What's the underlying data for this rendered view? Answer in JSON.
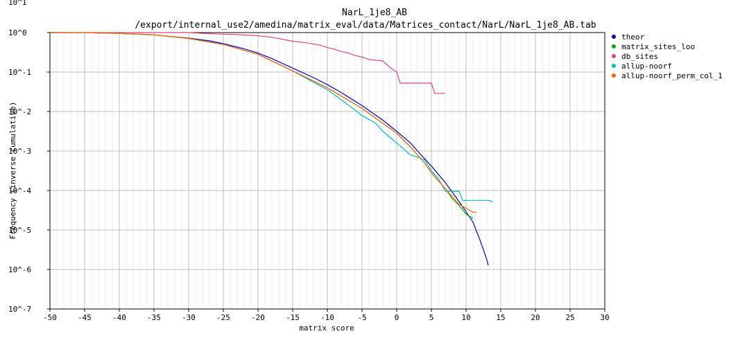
{
  "chart_data": {
    "type": "line",
    "title": "NarL_1je8_AB",
    "subtitle": "/export/internal_use2/amedina/matrix_eval/data/Matrices_contact/NarL/NarL_1je8_AB.tab",
    "xlabel": "matrix score",
    "ylabel": "Frequency (inverse cumulative)",
    "xlim": [
      -50,
      30
    ],
    "ylim_log10": [
      -7,
      0
    ],
    "y_scale": "log",
    "grid": true,
    "legend_position": "right",
    "x_ticks": [
      "-50",
      "-45",
      "-40",
      "-35",
      "-30",
      "-25",
      "-20",
      "-15",
      "-10",
      "-5",
      "0",
      "5",
      "10",
      "15",
      "20",
      "25",
      "30"
    ],
    "y_ticks": [
      "10^0",
      "10^-1",
      "10^-2",
      "10^-3",
      "10^-4",
      "10^-5",
      "10^-6",
      "10^-7"
    ],
    "top_tick_label": "10^1",
    "series": [
      {
        "name": "theor",
        "color": "#0000cc",
        "x": [
          -50,
          -45,
          -40,
          -37,
          -35,
          -30,
          -27,
          -25,
          -22,
          -20,
          -18,
          -15,
          -12,
          -10,
          -8,
          -5,
          -2,
          0,
          2,
          3,
          5,
          7,
          9,
          11,
          12,
          13,
          13.2
        ],
        "y_log10": [
          0,
          -0.004,
          -0.02,
          -0.04,
          -0.06,
          -0.14,
          -0.21,
          -0.28,
          -0.41,
          -0.52,
          -0.66,
          -0.9,
          -1.14,
          -1.32,
          -1.52,
          -1.85,
          -2.22,
          -2.5,
          -2.8,
          -3.0,
          -3.38,
          -3.8,
          -4.28,
          -4.8,
          -5.25,
          -5.75,
          -5.9
        ]
      },
      {
        "name": "matrix_sites_loo",
        "color": "#00aa00",
        "x": [
          -50,
          -45,
          -40,
          -35,
          -30,
          -25,
          -20,
          -15,
          -10,
          -5,
          -2,
          0,
          2,
          4,
          5,
          6,
          7,
          8,
          9,
          10,
          11
        ],
        "y_log10": [
          0,
          -0.004,
          -0.02,
          -0.06,
          -0.15,
          -0.3,
          -0.55,
          -0.97,
          -1.4,
          -1.92,
          -2.3,
          -2.55,
          -2.9,
          -3.3,
          -3.55,
          -3.75,
          -3.95,
          -4.2,
          -4.38,
          -4.6,
          -4.7
        ]
      },
      {
        "name": "db_sites",
        "color": "#dd4477",
        "x": [
          -50,
          -40,
          -35,
          -30,
          -28,
          -25,
          -23,
          -20,
          -18,
          -15,
          -13,
          -11,
          -10,
          -9,
          -8,
          -7,
          -6,
          -5,
          -4,
          -3,
          -2,
          -1,
          -0.5,
          0,
          0.5,
          2,
          4,
          5,
          5.5,
          6,
          7
        ],
        "y_log10": [
          0,
          0,
          0,
          0,
          -0.02,
          -0.04,
          -0.05,
          -0.08,
          -0.12,
          -0.22,
          -0.26,
          -0.32,
          -0.38,
          -0.42,
          -0.48,
          -0.52,
          -0.58,
          -0.62,
          -0.68,
          -0.7,
          -0.72,
          -0.88,
          -0.94,
          -1.0,
          -1.28,
          -1.28,
          -1.28,
          -1.28,
          -1.54,
          -1.54,
          -1.54
        ]
      },
      {
        "name": "allup-noorf",
        "color": "#00bbbb",
        "x": [
          -50,
          -45,
          -40,
          -35,
          -30,
          -25,
          -20,
          -15,
          -10,
          -8,
          -5,
          -3,
          -2,
          -1,
          0,
          2,
          3,
          4,
          5,
          6,
          6.5,
          7,
          9,
          9.5,
          10,
          13,
          13.5,
          13.8
        ],
        "y_log10": [
          0,
          -0.004,
          -0.02,
          -0.06,
          -0.15,
          -0.3,
          -0.55,
          -0.97,
          -1.45,
          -1.7,
          -2.1,
          -2.3,
          -2.5,
          -2.65,
          -2.8,
          -3.1,
          -3.15,
          -3.22,
          -3.5,
          -3.7,
          -3.85,
          -4.02,
          -4.02,
          -4.25,
          -4.25,
          -4.25,
          -4.25,
          -4.3
        ]
      },
      {
        "name": "allup-noorf_perm_col_1",
        "color": "#ff6600",
        "x": [
          -50,
          -45,
          -40,
          -35,
          -30,
          -25,
          -20,
          -15,
          -10,
          -5,
          -2,
          0,
          2,
          4,
          5,
          6,
          7,
          8,
          9,
          10,
          11,
          11.5
        ],
        "y_log10": [
          0,
          -0.004,
          -0.02,
          -0.06,
          -0.15,
          -0.3,
          -0.55,
          -0.97,
          -1.4,
          -1.92,
          -2.3,
          -2.55,
          -2.9,
          -3.3,
          -3.55,
          -3.75,
          -3.95,
          -4.15,
          -4.35,
          -4.45,
          -4.55,
          -4.55
        ]
      }
    ]
  }
}
